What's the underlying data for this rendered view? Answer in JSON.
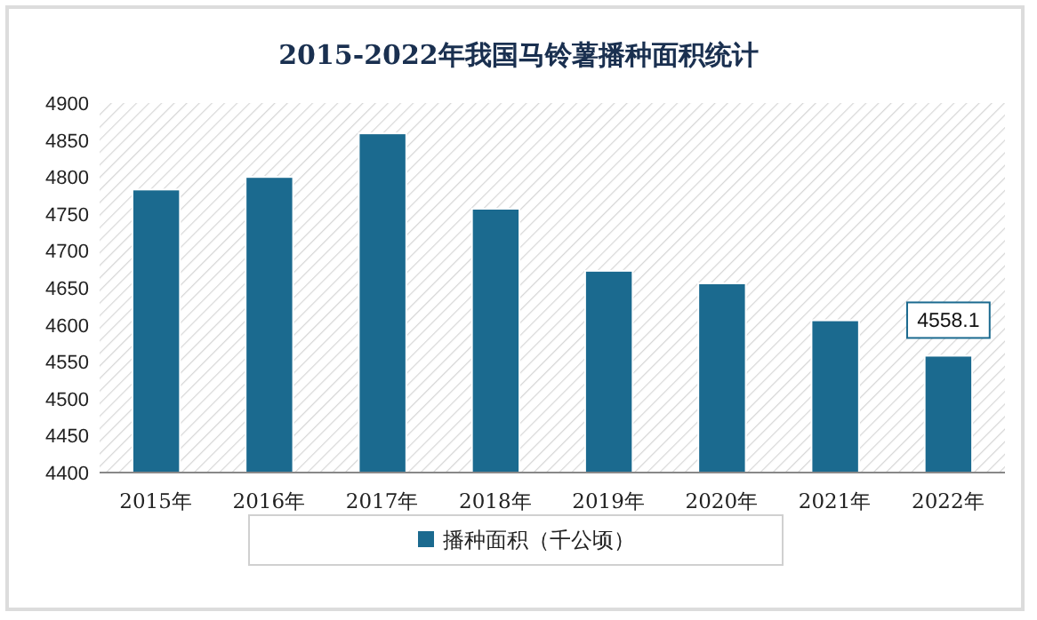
{
  "chart_data": {
    "type": "bar",
    "title": "2015-2022年我国马铃薯播种面积统计",
    "categories": [
      "2015年",
      "2016年",
      "2017年",
      "2018年",
      "2019年",
      "2020年",
      "2021年",
      "2022年"
    ],
    "series": [
      {
        "name": "播种面积（千公顷）",
        "color": "#1b6a8f",
        "values": [
          4783,
          4800,
          4859,
          4757,
          4673,
          4656,
          4606,
          4558.1
        ],
        "value_labels": [
          null,
          null,
          null,
          null,
          null,
          null,
          null,
          "4558.1"
        ]
      }
    ],
    "ylim": [
      4400,
      4900
    ],
    "yticks": [
      4400,
      4450,
      4500,
      4550,
      4600,
      4650,
      4700,
      4750,
      4800,
      4850,
      4900
    ],
    "grid": false,
    "legend": "bottom"
  }
}
